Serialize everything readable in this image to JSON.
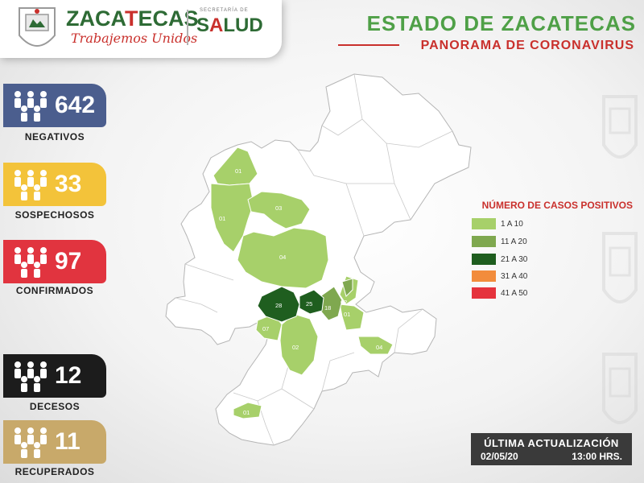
{
  "header": {
    "logo_title_part1": "ZACA",
    "logo_title_part2": "T",
    "logo_title_part3": "ECAS",
    "logo_subtitle": "Trabajemos Unidos",
    "secretaria": "SECRETARÍA DE",
    "salud_part1": "S",
    "salud_part2": "A",
    "salud_part3": "LUD",
    "state_title": "ESTADO DE ZACATECAS",
    "panorama": "PANORAMA DE CORONAVIRUS"
  },
  "stats": [
    {
      "value": "642",
      "label": "NEGATIVOS",
      "color": "#4b5e8e"
    },
    {
      "value": "33",
      "label": "SOSPECHOSOS",
      "color": "#f3c33a"
    },
    {
      "value": "97",
      "label": "CONFIRMADOS",
      "color": "#e1343f"
    },
    {
      "value": "12",
      "label": "DECESOS",
      "color": "#1c1c1c"
    },
    {
      "value": "11",
      "label": "RECUPERADOS",
      "color": "#c8a96a"
    }
  ],
  "legend": {
    "title": "NÚMERO DE CASOS POSITIVOS",
    "items": [
      {
        "label": "1 A 10",
        "color": "#a7d06a"
      },
      {
        "label": "11 A 20",
        "color": "#7fa84f"
      },
      {
        "label": "21 A 30",
        "color": "#1f5e1f"
      },
      {
        "label": "31 A 40",
        "color": "#f28c3c"
      },
      {
        "label": "41 A 50",
        "color": "#e5333d"
      }
    ]
  },
  "map_labels": [
    "01",
    "01",
    "03",
    "04",
    "28",
    "25",
    "18",
    "02",
    "01",
    "07",
    "02",
    "04",
    "01"
  ],
  "update": {
    "label": "ÚLTIMA ACTUALIZACIÓN",
    "date": "02/05/20",
    "time": "13:00 HRS."
  }
}
